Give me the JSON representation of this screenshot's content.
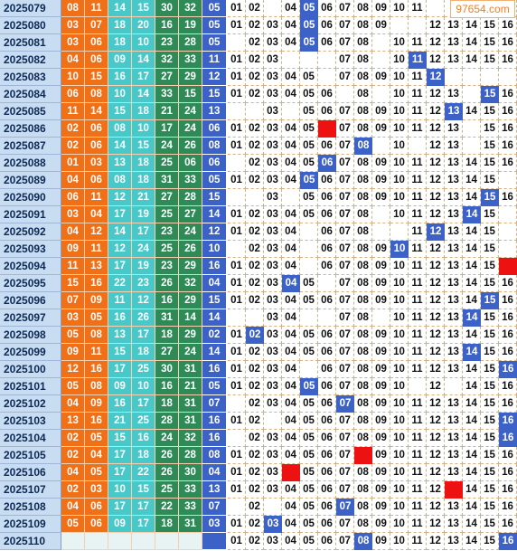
{
  "chart_data": {
    "type": "table",
    "title": "",
    "columns": {
      "issue": "",
      "red_balls": [
        "",
        "",
        "",
        "",
        "",
        ""
      ],
      "blue_ball": "",
      "blue_distribution": [
        "01",
        "02",
        "03",
        "04",
        "05",
        "06",
        "07",
        "08",
        "09",
        "10",
        "11",
        "12",
        "13",
        "14",
        "15",
        "16"
      ]
    },
    "rows": [
      {
        "issue": "2025079",
        "red": [
          "08",
          "11",
          "14",
          "15",
          "30",
          "32"
        ],
        "blue": "05"
      },
      {
        "issue": "2025080",
        "red": [
          "03",
          "07",
          "18",
          "20",
          "16",
          "19"
        ],
        "blue": "05"
      },
      {
        "issue": "2025081",
        "red": [
          "03",
          "06",
          "18",
          "10",
          "23",
          "28"
        ],
        "blue": "05"
      },
      {
        "issue": "2025082",
        "red": [
          "04",
          "06",
          "09",
          "14",
          "32",
          "33"
        ],
        "blue": "11"
      },
      {
        "issue": "2025083",
        "red": [
          "10",
          "15",
          "16",
          "17",
          "27",
          "29"
        ],
        "blue": "12"
      },
      {
        "issue": "2025084",
        "red": [
          "06",
          "08",
          "10",
          "14",
          "33",
          "15"
        ],
        "blue": "15"
      },
      {
        "issue": "2025085",
        "red": [
          "11",
          "14",
          "15",
          "18",
          "21",
          "24"
        ],
        "blue": "13"
      },
      {
        "issue": "2025086",
        "red": [
          "02",
          "06",
          "08",
          "10",
          "17",
          "24"
        ],
        "blue": "06"
      },
      {
        "issue": "2025087",
        "red": [
          "02",
          "06",
          "14",
          "15",
          "24",
          "26"
        ],
        "blue": "08"
      },
      {
        "issue": "2025088",
        "red": [
          "01",
          "03",
          "13",
          "18",
          "25",
          "06"
        ],
        "blue": "06"
      },
      {
        "issue": "2025089",
        "red": [
          "04",
          "06",
          "08",
          "18",
          "31",
          "33"
        ],
        "blue": "05"
      },
      {
        "issue": "2025090",
        "red": [
          "06",
          "11",
          "12",
          "21",
          "27",
          "28"
        ],
        "blue": "15"
      },
      {
        "issue": "2025091",
        "red": [
          "03",
          "04",
          "17",
          "19",
          "25",
          "27"
        ],
        "blue": "14"
      },
      {
        "issue": "2025092",
        "red": [
          "04",
          "12",
          "14",
          "17",
          "23",
          "24"
        ],
        "blue": "12"
      },
      {
        "issue": "2025093",
        "red": [
          "09",
          "11",
          "12",
          "24",
          "25",
          "26"
        ],
        "blue": "10"
      },
      {
        "issue": "2025094",
        "red": [
          "11",
          "13",
          "17",
          "19",
          "23",
          "29"
        ],
        "blue": "16"
      },
      {
        "issue": "2025095",
        "red": [
          "15",
          "16",
          "22",
          "23",
          "26",
          "32"
        ],
        "blue": "04"
      },
      {
        "issue": "2025096",
        "red": [
          "07",
          "09",
          "11",
          "12",
          "16",
          "29"
        ],
        "blue": "15"
      },
      {
        "issue": "2025097",
        "red": [
          "03",
          "05",
          "16",
          "26",
          "31",
          "14"
        ],
        "blue": "14"
      },
      {
        "issue": "2025098",
        "red": [
          "05",
          "08",
          "13",
          "17",
          "18",
          "29"
        ],
        "blue": "02"
      },
      {
        "issue": "2025099",
        "red": [
          "09",
          "11",
          "15",
          "18",
          "27",
          "24"
        ],
        "blue": "14"
      },
      {
        "issue": "2025100",
        "red": [
          "12",
          "16",
          "17",
          "25",
          "30",
          "31"
        ],
        "blue": "16"
      },
      {
        "issue": "2025101",
        "red": [
          "05",
          "08",
          "09",
          "10",
          "16",
          "21"
        ],
        "blue": "05"
      },
      {
        "issue": "2025102",
        "red": [
          "04",
          "09",
          "16",
          "17",
          "18",
          "31"
        ],
        "blue": "07"
      },
      {
        "issue": "2025103",
        "red": [
          "13",
          "16",
          "21",
          "25",
          "28",
          "31"
        ],
        "blue": "16"
      },
      {
        "issue": "2025104",
        "red": [
          "02",
          "05",
          "15",
          "16",
          "24",
          "32"
        ],
        "blue": "16"
      },
      {
        "issue": "2025105",
        "red": [
          "02",
          "04",
          "17",
          "18",
          "26",
          "28"
        ],
        "blue": "08"
      },
      {
        "issue": "2025106",
        "red": [
          "04",
          "05",
          "17",
          "22",
          "26",
          "30"
        ],
        "blue": "04"
      },
      {
        "issue": "2025107",
        "red": [
          "02",
          "03",
          "10",
          "15",
          "25",
          "33"
        ],
        "blue": "13"
      },
      {
        "issue": "2025108",
        "red": [
          "04",
          "06",
          "17",
          "17",
          "22",
          "33"
        ],
        "blue": "07"
      },
      {
        "issue": "2025109",
        "red": [
          "05",
          "06",
          "09",
          "17",
          "18",
          "31"
        ],
        "blue": "03"
      },
      {
        "issue": "2025110",
        "red": [
          "",
          "",
          "",
          "",
          "",
          ""
        ],
        "blue": ""
      }
    ],
    "distribution_rows": [
      {
        "hits": [
          5
        ],
        "red_marks": [],
        "shown": [
          "01",
          "02",
          "04",
          "06",
          "07",
          "08",
          "09",
          "10",
          "11"
        ]
      },
      {
        "hits": [
          5
        ],
        "red_marks": [],
        "shown": [
          "01",
          "02",
          "03",
          "04",
          "06",
          "07",
          "08",
          "09",
          "12",
          "13",
          "14",
          "15",
          "16"
        ]
      },
      {
        "hits": [
          5
        ],
        "red_marks": [],
        "shown": [
          "02",
          "03",
          "04",
          "06",
          "07",
          "08",
          "10",
          "11",
          "12",
          "13",
          "14",
          "15",
          "16"
        ]
      },
      {
        "hits": [
          11
        ],
        "red_marks": [],
        "shown": [
          "01",
          "02",
          "03",
          "07",
          "08",
          "10",
          "12",
          "13",
          "14",
          "15",
          "16"
        ]
      },
      {
        "hits": [
          12
        ],
        "red_marks": [],
        "shown": [
          "01",
          "02",
          "03",
          "04",
          "05",
          "07",
          "08",
          "09",
          "10",
          "11"
        ]
      },
      {
        "hits": [
          15
        ],
        "red_marks": [],
        "shown": [
          "01",
          "02",
          "03",
          "04",
          "05",
          "06",
          "08",
          "10",
          "11",
          "12",
          "13",
          "16"
        ]
      },
      {
        "hits": [
          13
        ],
        "red_marks": [],
        "shown": [
          "03",
          "05",
          "06",
          "07",
          "08",
          "09",
          "10",
          "11",
          "12",
          "14",
          "15",
          "16"
        ]
      },
      {
        "hits": [],
        "red_marks": [
          6
        ],
        "shown": [
          "01",
          "02",
          "03",
          "04",
          "05",
          "07",
          "08",
          "09",
          "10",
          "11",
          "12",
          "13",
          "15",
          "16"
        ]
      },
      {
        "hits": [
          8
        ],
        "red_marks": [],
        "shown": [
          "01",
          "02",
          "03",
          "04",
          "05",
          "06",
          "07",
          "10",
          "12",
          "13",
          "15",
          "16"
        ]
      },
      {
        "hits": [
          6
        ],
        "red_marks": [],
        "shown": [
          "02",
          "03",
          "04",
          "05",
          "07",
          "08",
          "09",
          "10",
          "11",
          "12",
          "13",
          "14",
          "15",
          "16"
        ]
      },
      {
        "hits": [
          5
        ],
        "red_marks": [],
        "shown": [
          "01",
          "02",
          "03",
          "04",
          "06",
          "07",
          "08",
          "09",
          "10",
          "11",
          "12",
          "13",
          "14",
          "15"
        ]
      },
      {
        "hits": [
          15
        ],
        "red_marks": [],
        "shown": [
          "03",
          "05",
          "06",
          "07",
          "08",
          "09",
          "10",
          "11",
          "12",
          "13",
          "14",
          "16"
        ]
      },
      {
        "hits": [
          14
        ],
        "red_marks": [],
        "shown": [
          "01",
          "02",
          "03",
          "04",
          "05",
          "06",
          "07",
          "08",
          "10",
          "11",
          "12",
          "13",
          "15"
        ]
      },
      {
        "hits": [
          12
        ],
        "red_marks": [],
        "shown": [
          "01",
          "02",
          "03",
          "04",
          "06",
          "07",
          "08",
          "11",
          "13",
          "14",
          "15"
        ]
      },
      {
        "hits": [
          10
        ],
        "red_marks": [],
        "shown": [
          "02",
          "03",
          "04",
          "06",
          "07",
          "08",
          "09",
          "11",
          "12",
          "13",
          "14",
          "15"
        ]
      },
      {
        "hits": [],
        "red_marks": [
          16
        ],
        "shown": [
          "01",
          "02",
          "03",
          "04",
          "06",
          "07",
          "08",
          "09",
          "10",
          "11",
          "12",
          "13",
          "14",
          "15"
        ]
      },
      {
        "hits": [
          4
        ],
        "red_marks": [],
        "shown": [
          "01",
          "02",
          "03",
          "05",
          "07",
          "08",
          "09",
          "10",
          "11",
          "12",
          "13",
          "14",
          "15",
          "16"
        ]
      },
      {
        "hits": [
          15
        ],
        "red_marks": [],
        "shown": [
          "01",
          "02",
          "03",
          "04",
          "05",
          "06",
          "07",
          "08",
          "09",
          "10",
          "11",
          "12",
          "13",
          "14",
          "16"
        ]
      },
      {
        "hits": [
          14
        ],
        "red_marks": [],
        "shown": [
          "03",
          "04",
          "07",
          "08",
          "10",
          "11",
          "12",
          "13",
          "15",
          "16"
        ]
      },
      {
        "hits": [
          2
        ],
        "red_marks": [],
        "shown": [
          "01",
          "03",
          "04",
          "05",
          "06",
          "07",
          "08",
          "09",
          "10",
          "11",
          "12",
          "13",
          "14",
          "15",
          "16"
        ]
      },
      {
        "hits": [
          14
        ],
        "red_marks": [],
        "shown": [
          "01",
          "02",
          "03",
          "04",
          "05",
          "06",
          "07",
          "08",
          "09",
          "10",
          "11",
          "12",
          "13",
          "15",
          "16"
        ]
      },
      {
        "hits": [
          16
        ],
        "red_marks": [],
        "shown": [
          "01",
          "02",
          "03",
          "04",
          "06",
          "07",
          "08",
          "09",
          "10",
          "11",
          "12",
          "13",
          "14",
          "15"
        ]
      },
      {
        "hits": [
          5
        ],
        "red_marks": [],
        "shown": [
          "01",
          "02",
          "03",
          "04",
          "06",
          "07",
          "08",
          "09",
          "10",
          "12",
          "14",
          "15",
          "16"
        ]
      },
      {
        "hits": [
          7
        ],
        "red_marks": [],
        "shown": [
          "02",
          "03",
          "04",
          "05",
          "06",
          "08",
          "09",
          "10",
          "11",
          "12",
          "13",
          "14",
          "15",
          "16"
        ]
      },
      {
        "hits": [
          16
        ],
        "red_marks": [],
        "shown": [
          "01",
          "02",
          "04",
          "05",
          "06",
          "07",
          "08",
          "09",
          "10",
          "11",
          "12",
          "13",
          "14",
          "15"
        ]
      },
      {
        "hits": [
          16
        ],
        "red_marks": [],
        "shown": [
          "02",
          "03",
          "04",
          "05",
          "06",
          "07",
          "08",
          "09",
          "10",
          "11",
          "12",
          "13",
          "14",
          "15"
        ]
      },
      {
        "hits": [],
        "red_marks": [
          8
        ],
        "shown": [
          "01",
          "02",
          "03",
          "04",
          "05",
          "06",
          "07",
          "09",
          "10",
          "11",
          "12",
          "13",
          "14",
          "15",
          "16"
        ]
      },
      {
        "hits": [],
        "red_marks": [
          4
        ],
        "shown": [
          "01",
          "02",
          "03",
          "05",
          "06",
          "07",
          "08",
          "09",
          "10",
          "11",
          "12",
          "13",
          "14",
          "15",
          "16"
        ]
      },
      {
        "hits": [],
        "red_marks": [
          13
        ],
        "shown": [
          "01",
          "02",
          "03",
          "04",
          "05",
          "06",
          "07",
          "08",
          "09",
          "10",
          "11",
          "12",
          "14",
          "15",
          "16"
        ]
      },
      {
        "hits": [
          7
        ],
        "red_marks": [],
        "shown": [
          "02",
          "04",
          "05",
          "06",
          "08",
          "09",
          "10",
          "11",
          "12",
          "13",
          "14",
          "15",
          "16"
        ]
      },
      {
        "hits": [
          3
        ],
        "red_marks": [],
        "shown": [
          "01",
          "02",
          "04",
          "05",
          "06",
          "07",
          "08",
          "09",
          "10",
          "11",
          "12",
          "13",
          "14",
          "15",
          "16"
        ]
      },
      {
        "hits": [
          8,
          16
        ],
        "red_marks": [],
        "shown": [
          "01",
          "02",
          "03",
          "04",
          "05",
          "06",
          "07",
          "09",
          "10",
          "11",
          "12",
          "13",
          "14",
          "15"
        ]
      }
    ]
  },
  "logo_text": "97654.com",
  "colors": {
    "issue_bg": "#c9ddf2",
    "red_dark": "#f07018",
    "red_mid": "#48c8c8",
    "red_green": "#2e8b57",
    "blue_bg": "#3c62c8",
    "hit_blue": "#3c62c8",
    "hit_red": "#ee1111"
  }
}
